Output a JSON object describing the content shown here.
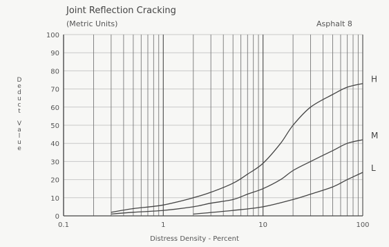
{
  "chart_data": {
    "type": "line",
    "title": "Joint Reflection Cracking",
    "subtitle": "(Metric Units)",
    "material": "Asphalt 8",
    "xlabel": "Distress Density - Percent",
    "ylabel": [
      "D",
      "e",
      "d",
      "u",
      "c",
      "t",
      "",
      "V",
      "a",
      "l",
      "u",
      "e"
    ],
    "x_scale": "log",
    "xlim": [
      0.1,
      100
    ],
    "ylim": [
      0,
      100
    ],
    "x_ticks": [
      {
        "v": 0.1,
        "label": "0.1"
      },
      {
        "v": 1,
        "label": "1"
      },
      {
        "v": 10,
        "label": "10"
      },
      {
        "v": 100,
        "label": "100"
      }
    ],
    "y_ticks": [
      0,
      10,
      20,
      30,
      40,
      50,
      60,
      70,
      80,
      90,
      100
    ],
    "series": [
      {
        "name": "H",
        "x": [
          0.3,
          0.5,
          1,
          2,
          3,
          5,
          7,
          10,
          15,
          20,
          30,
          50,
          70,
          100
        ],
        "y": [
          2,
          4,
          6,
          10,
          13,
          18,
          23,
          29,
          40,
          50,
          60,
          67,
          71,
          73
        ]
      },
      {
        "name": "M",
        "x": [
          0.3,
          0.5,
          1,
          2,
          3,
          5,
          7,
          10,
          15,
          20,
          30,
          50,
          70,
          100
        ],
        "y": [
          1,
          2,
          3,
          5,
          7,
          9,
          12,
          15,
          20,
          25,
          30,
          36,
          40,
          42
        ]
      },
      {
        "name": "L",
        "x": [
          2,
          5,
          10,
          20,
          30,
          50,
          70,
          100
        ],
        "y": [
          1,
          3,
          5,
          9,
          12,
          16,
          20,
          24
        ]
      }
    ],
    "grid": true
  }
}
